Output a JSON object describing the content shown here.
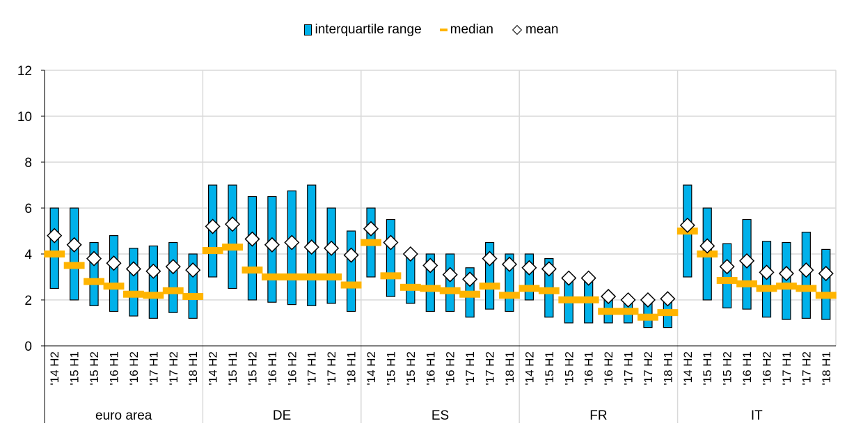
{
  "legend": {
    "iqr": "interquartile range",
    "median": "median",
    "mean": "mean"
  },
  "colors": {
    "iqr_fill": "#00b1ea",
    "median": "#ffb400",
    "mean_fill": "#ffffff",
    "gridline": "#d9d9d9"
  },
  "chart_data": {
    "type": "box",
    "ylim": [
      0,
      12
    ],
    "yticks": [
      0,
      2,
      4,
      6,
      8,
      10,
      12
    ],
    "grid": "horizontal",
    "legend_position": "top-center",
    "periods": [
      "'14 H2",
      "'15 H1",
      "'15 H2",
      "'16 H1",
      "'16 H2",
      "'17 H1",
      "'17 H2",
      "'18 H1"
    ],
    "groups": [
      {
        "name": "euro area",
        "iqr_low": [
          2.5,
          2.0,
          1.75,
          1.5,
          1.3,
          1.2,
          1.45,
          1.2
        ],
        "iqr_high": [
          6.0,
          6.0,
          4.5,
          4.8,
          4.25,
          4.35,
          4.5,
          4.0
        ],
        "median": [
          4.0,
          3.5,
          2.8,
          2.6,
          2.25,
          2.2,
          2.4,
          2.15
        ],
        "mean": [
          4.8,
          4.4,
          3.8,
          3.6,
          3.35,
          3.25,
          3.45,
          3.3
        ]
      },
      {
        "name": "DE",
        "iqr_low": [
          3.0,
          2.5,
          2.0,
          1.9,
          1.8,
          1.75,
          1.85,
          1.5
        ],
        "iqr_high": [
          7.0,
          7.0,
          6.5,
          6.5,
          6.75,
          7.0,
          6.0,
          5.0
        ],
        "median": [
          4.15,
          4.3,
          3.3,
          3.0,
          3.0,
          3.0,
          3.0,
          2.65
        ],
        "mean": [
          5.2,
          5.3,
          4.65,
          4.4,
          4.5,
          4.3,
          4.25,
          3.95
        ]
      },
      {
        "name": "ES",
        "iqr_low": [
          3.0,
          2.15,
          1.85,
          1.5,
          1.5,
          1.25,
          1.6,
          1.5
        ],
        "iqr_high": [
          6.0,
          5.5,
          4.0,
          4.0,
          4.0,
          3.4,
          4.5,
          4.0
        ],
        "median": [
          4.5,
          3.05,
          2.55,
          2.5,
          2.4,
          2.25,
          2.6,
          2.2
        ],
        "mean": [
          5.1,
          4.5,
          4.0,
          3.5,
          3.1,
          2.9,
          3.8,
          3.55
        ]
      },
      {
        "name": "FR",
        "iqr_low": [
          2.0,
          1.25,
          1.0,
          1.0,
          1.0,
          1.0,
          0.8,
          0.8
        ],
        "iqr_high": [
          4.0,
          3.8,
          3.0,
          3.0,
          2.0,
          2.0,
          2.0,
          2.0
        ],
        "median": [
          2.5,
          2.4,
          2.0,
          2.0,
          1.5,
          1.5,
          1.25,
          1.45
        ],
        "mean": [
          3.4,
          3.35,
          2.95,
          2.95,
          2.15,
          2.0,
          2.0,
          2.05
        ]
      },
      {
        "name": "IT",
        "iqr_low": [
          3.0,
          2.0,
          1.65,
          1.6,
          1.25,
          1.15,
          1.2,
          1.15
        ],
        "iqr_high": [
          7.0,
          6.0,
          4.45,
          5.5,
          4.55,
          4.5,
          4.95,
          4.2
        ],
        "median": [
          5.0,
          4.0,
          2.85,
          2.7,
          2.5,
          2.6,
          2.5,
          2.2
        ],
        "mean": [
          5.25,
          4.35,
          3.45,
          3.7,
          3.2,
          3.15,
          3.3,
          3.15
        ]
      }
    ]
  }
}
